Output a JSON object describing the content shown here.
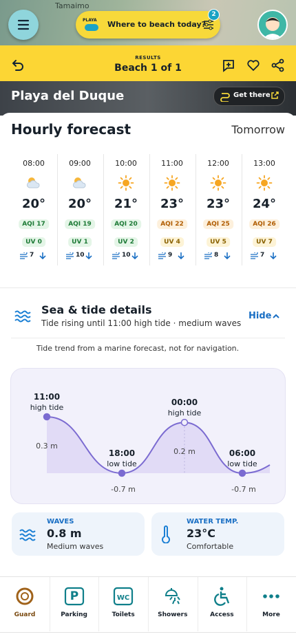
{
  "map": {
    "place": "Tamaimo"
  },
  "search": {
    "logo": "PLAYA",
    "placeholder": "Where to beach today?",
    "filter_count": "2"
  },
  "header": {
    "label": "RESULTS",
    "title": "Beach 1 of 1"
  },
  "beach": {
    "name": "Playa del Duque",
    "action": "Get there"
  },
  "hourly": {
    "title": "Hourly forecast",
    "day": "Tomorrow",
    "hours": [
      {
        "time": "08:00",
        "icon": "cloudy",
        "temp": "20°",
        "aqi": "AQI 17",
        "uv": "UV 0",
        "wind": "7"
      },
      {
        "time": "09:00",
        "icon": "cloudy",
        "temp": "20°",
        "aqi": "AQI 19",
        "uv": "UV 1",
        "wind": "10"
      },
      {
        "time": "10:00",
        "icon": "sunny",
        "temp": "21°",
        "aqi": "AQI 20",
        "uv": "UV 2",
        "wind": "10"
      },
      {
        "time": "11:00",
        "icon": "sunny",
        "temp": "23°",
        "aqi": "AQI 22",
        "uv": "UV 4",
        "wind": "9"
      },
      {
        "time": "12:00",
        "icon": "sunny",
        "temp": "23°",
        "aqi": "AQI 25",
        "uv": "UV 5",
        "wind": "8"
      },
      {
        "time": "13:00",
        "icon": "sunny",
        "temp": "24°",
        "aqi": "AQI 26",
        "uv": "UV 7",
        "wind": "7"
      }
    ]
  },
  "tide": {
    "title": "Sea & tide details",
    "summary": "Tide rising until 11:00 high tide · medium waves",
    "toggle": "Hide",
    "note": "Tide trend from a marine forecast, not for navigation.",
    "points": [
      {
        "time": "11:00",
        "kind": "high tide",
        "height": 0.3,
        "label": "0.3 m"
      },
      {
        "time": "18:00",
        "kind": "low tide",
        "height": -0.7,
        "label": "-0.7 m"
      },
      {
        "time": "00:00",
        "kind": "high tide",
        "height": 0.2,
        "label": "0.2 m"
      },
      {
        "time": "06:00",
        "kind": "low tide",
        "height": -0.7,
        "label": "-0.7 m"
      }
    ]
  },
  "cards": {
    "waves": {
      "label": "WAVES",
      "value": "0.8 m",
      "detail": "Medium waves"
    },
    "water": {
      "label": "WATER TEMP.",
      "value": "23°C",
      "detail": "Comfortable"
    }
  },
  "nav": [
    {
      "label": "Guard",
      "active": true
    },
    {
      "label": "Parking",
      "icon_text": "P"
    },
    {
      "label": "Toilets",
      "icon_text": "WC"
    },
    {
      "label": "Showers"
    },
    {
      "label": "Access"
    },
    {
      "label": "More"
    }
  ]
}
